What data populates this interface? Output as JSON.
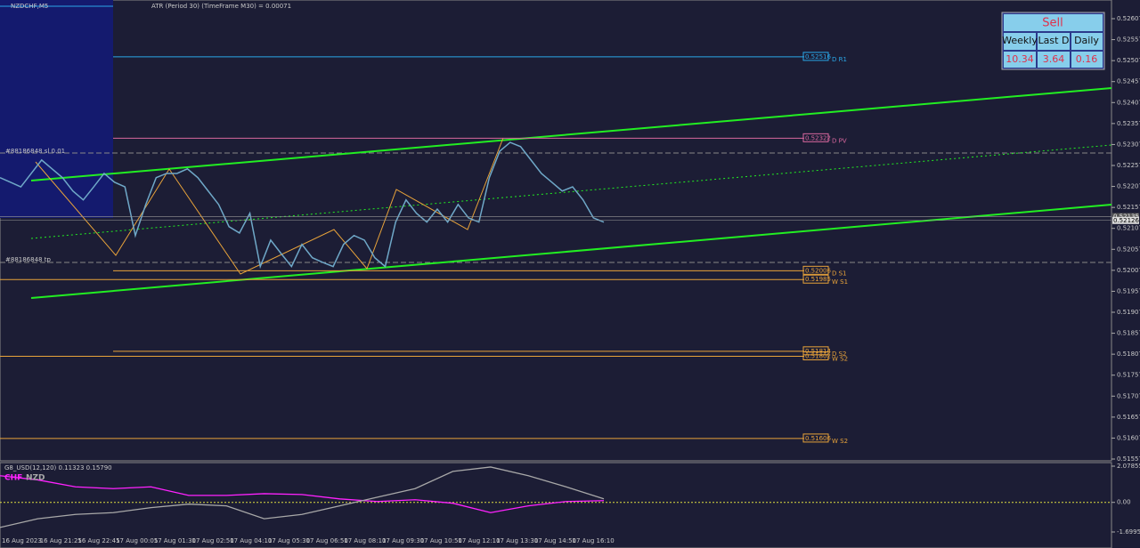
{
  "header": {
    "symbol": "NZDCHF,M5",
    "indicator": "ATR (Period 30) (TimeFrame M30) = 0.00071"
  },
  "orders": {
    "sl_label": "#88186848 sl 0.01",
    "tp_label": "#88186848 tp"
  },
  "panel": {
    "title": "Sell",
    "headers": [
      "Weekly",
      "Last D",
      "Daily"
    ],
    "values": [
      "10.34",
      "3.64",
      "0.16"
    ]
  },
  "price_axis": {
    "ylim": [
      0.51557,
      0.52607
    ],
    "ticks": [
      0.52607,
      0.52557,
      0.52507,
      0.52457,
      0.52407,
      0.52357,
      0.52307,
      0.52257,
      0.52207,
      0.52157,
      0.52107,
      0.52057,
      0.52007,
      0.51957,
      0.51907,
      0.51857,
      0.51807,
      0.51757,
      0.51707,
      0.51657,
      0.51607,
      0.51557
    ]
  },
  "levels": [
    {
      "label": "D R1",
      "value": 0.52516,
      "color": "#2aa7e8"
    },
    {
      "label": "D PV",
      "value": 0.52322,
      "color": "#d8679e"
    },
    {
      "label": "D S1",
      "value": 0.52006,
      "color": "#e8a33a"
    },
    {
      "label": "W S1",
      "value": 0.51985,
      "color": "#e8a33a"
    },
    {
      "label": "D S2",
      "value": 0.51814,
      "color": "#e8a33a"
    },
    {
      "label": "W S2",
      "value": 0.51802,
      "color": "#e8a33a"
    },
    {
      "label": "W S2",
      "value": 0.51606,
      "color": "#e8a33a"
    }
  ],
  "current_price": [
    0.52135,
    0.52126
  ],
  "price": {
    "color": "#6fa8c8",
    "close": [
      0.52228,
      0.52217,
      0.52206,
      0.52238,
      0.5227,
      0.52249,
      0.52228,
      0.52196,
      0.52175,
      0.52206,
      0.52238,
      0.52217,
      0.52206,
      0.5209,
      0.52164,
      0.52228,
      0.52238,
      0.52238,
      0.52249,
      0.52228,
      0.52196,
      0.52164,
      0.52111,
      0.52096,
      0.52143,
      0.52016,
      0.52079,
      0.52047,
      0.52016,
      0.52069,
      0.52037,
      0.52026,
      0.52016,
      0.52069,
      0.5209,
      0.52079,
      0.52037,
      0.52016,
      0.52122,
      0.52175,
      0.52143,
      0.52122,
      0.52153,
      0.52122,
      0.52164,
      0.52132,
      0.52122,
      0.52228,
      0.52291,
      0.52312,
      0.52302,
      0.5227,
      0.52238,
      0.52217,
      0.52196,
      0.52206,
      0.52175,
      0.52132,
      0.52122
    ]
  },
  "time_labels": [
    "16 Aug 2023",
    "16 Aug 21:25",
    "16 Aug 22:45",
    "17 Aug 00:05",
    "17 Aug 01:30",
    "17 Aug 02:50",
    "17 Aug 04:10",
    "17 Aug 05:30",
    "17 Aug 06:50",
    "17 Aug 08:10",
    "17 Aug 09:30",
    "17 Aug 10:50",
    "17 Aug 12:10",
    "17 Aug 13:30",
    "17 Aug 14:50",
    "17 Aug 16:10"
  ],
  "oscillator": {
    "title": "G8_USD(12,120) 0.11323 0.15790",
    "ylim": [
      -1.69954,
      2.07855
    ],
    "ticks": [
      2.07855,
      {
        "value": 0,
        "label": "0.00"
      },
      -1.69954
    ],
    "series": [
      {
        "name": "CHF",
        "color": "#ff22ff",
        "values": [
          1.53,
          1.29,
          0.89,
          0.79,
          0.89,
          0.4,
          0.4,
          0.5,
          0.45,
          0.2,
          0.05,
          0.15,
          -0.05,
          -0.59,
          -0.2,
          0.05,
          0.1
        ]
      },
      {
        "name": "NZD",
        "color": "#a8a8a8",
        "values": [
          -1.44,
          -0.94,
          -0.69,
          -0.59,
          -0.3,
          -0.1,
          -0.2,
          -0.94,
          -0.69,
          -0.2,
          0.3,
          0.79,
          1.78,
          2.03,
          1.53,
          0.89,
          0.2
        ]
      }
    ]
  }
}
